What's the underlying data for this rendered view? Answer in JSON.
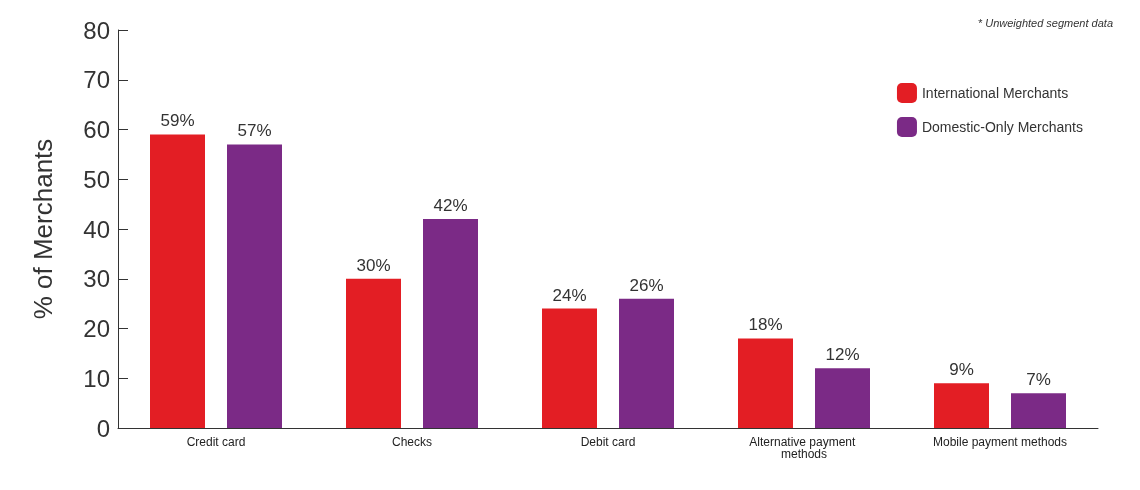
{
  "chart_data": {
    "type": "bar",
    "ylabel": "% of Merchants",
    "annotations": [
      "* Unweighted segment data"
    ],
    "categories": [
      "Credit card",
      "Checks",
      "Debit card",
      "Alternative payment methods",
      "Mobile payment methods"
    ],
    "series": [
      {
        "name": "International Merchants",
        "color": "#e31e24",
        "values": [
          59,
          30,
          24,
          18,
          9
        ],
        "value_labels": [
          "59%",
          "30%",
          "24%",
          "18%",
          "9%"
        ]
      },
      {
        "name": "Domestic-Only Merchants",
        "color": "#7b2a86",
        "values": [
          57,
          42,
          26,
          12,
          7
        ],
        "value_labels": [
          "57%",
          "42%",
          "26%",
          "12%",
          "7%"
        ]
      }
    ],
    "ylim": [
      0,
      80
    ],
    "yticks": [
      0,
      10,
      20,
      30,
      40,
      50,
      60,
      70,
      80
    ],
    "grid": false,
    "legend": "top right"
  }
}
